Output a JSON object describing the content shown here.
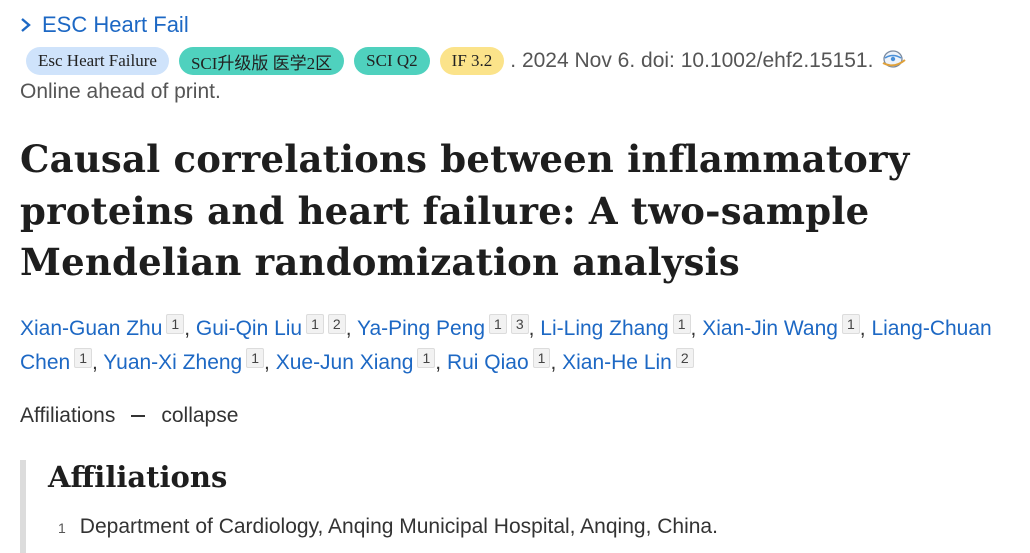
{
  "journal": {
    "link_label": "ESC Heart Fail",
    "chevron_icon": "chevron-right-icon"
  },
  "badges": {
    "journal": "Esc Heart Failure",
    "sci": "SCI升级版 医学2区",
    "quartile": "SCI Q2",
    "impact": "IF 3.2"
  },
  "citation": {
    "text": ". 2024 Nov 6. doi: 10.1002/ehf2.15151.",
    "icon": "citation-globe-icon"
  },
  "status": "Online ahead of print.",
  "title": "Causal correlations between inflammatory proteins and heart failure: A two-sample Mendelian randomization analysis",
  "authors": [
    {
      "name": "Xian-Guan Zhu",
      "affs": [
        "1"
      ]
    },
    {
      "name": "Gui-Qin Liu",
      "affs": [
        "1",
        "2"
      ]
    },
    {
      "name": "Ya-Ping Peng",
      "affs": [
        "1",
        "3"
      ]
    },
    {
      "name": "Li-Ling Zhang",
      "affs": [
        "1"
      ]
    },
    {
      "name": "Xian-Jin Wang",
      "affs": [
        "1"
      ]
    },
    {
      "name": "Liang-Chuan Chen",
      "affs": [
        "1"
      ]
    },
    {
      "name": "Yuan-Xi Zheng",
      "affs": [
        "1"
      ]
    },
    {
      "name": "Xue-Jun Xiang",
      "affs": [
        "1"
      ]
    },
    {
      "name": "Rui Qiao",
      "affs": [
        "1"
      ]
    },
    {
      "name": "Xian-He Lin",
      "affs": [
        "2"
      ]
    }
  ],
  "affiliations_toggle": {
    "label": "Affiliations",
    "action": "collapse"
  },
  "affiliations": {
    "heading": "Affiliations",
    "items": [
      {
        "num": "1",
        "text": "Department of Cardiology, Anqing Municipal Hospital, Anqing, China."
      }
    ]
  },
  "colors": {
    "link": "#1d68c4",
    "badge_sci": "#4fd1be",
    "badge_if": "#fbe38a",
    "badge_journal": "#cfe3fb"
  }
}
